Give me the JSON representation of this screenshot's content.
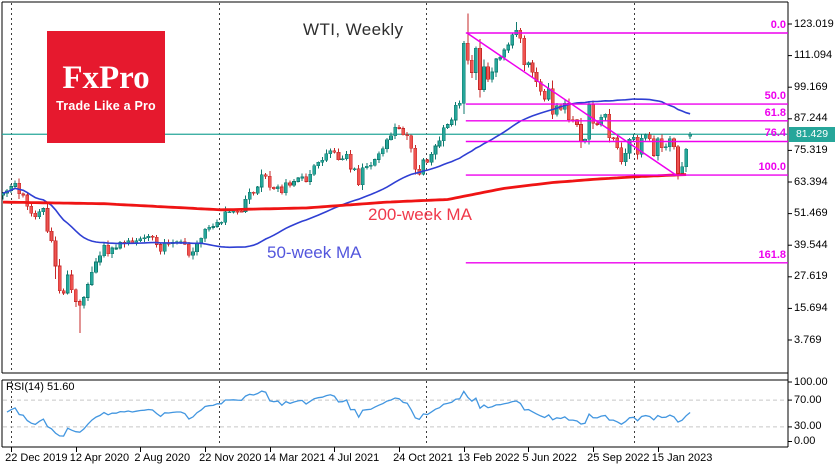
{
  "header": {
    "title": "WTI, Weekly"
  },
  "logo": {
    "name": "FxPro",
    "tagline": "Trade Like a Pro",
    "brand_red": "#e6192e"
  },
  "annotations": {
    "ma200_label": "200-week MA",
    "ma50_label": "50-week MA"
  },
  "rsi": {
    "label": "RSI(14) 51.60",
    "current": 51.6
  },
  "colors": {
    "up_candle": "#26a69a",
    "up_candle_border": "#0f7a6f",
    "down_candle": "#ef5350",
    "down_candle_border": "#c62828",
    "ma50": "#2f3fd3",
    "ma200": "#ef1414",
    "fib": "#ee00ee",
    "current_price_line": "#26a69a",
    "rsi_line": "#4296e0",
    "rsi_grid": "#c8c8c8",
    "axis": "#000000",
    "year_grid": "#3c3c3c"
  },
  "chart_data": {
    "type": "candlestick",
    "symbol": "WTI",
    "timeframe": "Weekly",
    "current_price": 81.429,
    "current_price_label": "81.429",
    "price_axis_ticks": [
      "123.019",
      "111.094",
      "99.169",
      "87.244",
      "75.319",
      "63.394",
      "51.469",
      "39.544",
      "27.619",
      "15.694",
      "3.769"
    ],
    "rsi_axis_ticks": [
      {
        "label": "100.00",
        "value": 100
      },
      {
        "label": "70.00",
        "value": 70
      },
      {
        "label": "30.00",
        "value": 30
      },
      {
        "label": "0.00",
        "value": 0
      }
    ],
    "rsi_guide_levels": [
      70,
      30
    ],
    "date_ticks": [
      {
        "label": "22 Dec 2019",
        "week": 2
      },
      {
        "label": "12 Apr 2020",
        "week": 18
      },
      {
        "label": "2 Aug 2020",
        "week": 34
      },
      {
        "label": "22 Nov 2020",
        "week": 50
      },
      {
        "label": "14 Mar 2021",
        "week": 66
      },
      {
        "label": "4 Jul 2021",
        "week": 82
      },
      {
        "label": "24 Oct 2021",
        "week": 98
      },
      {
        "label": "13 Feb 2022",
        "week": 114
      },
      {
        "label": "5 Jun 2022",
        "week": 130
      },
      {
        "label": "25 Sep 2022",
        "week": 146
      },
      {
        "label": "15 Jan 2023",
        "week": 162
      }
    ],
    "year_gridline_weeks": [
      2,
      53.4,
      104.6,
      156.1
    ],
    "closes": [
      59.2,
      60.1,
      61.7,
      63.0,
      59.0,
      58.5,
      54.2,
      51.6,
      50.3,
      52.1,
      53.4,
      44.8,
      41.3,
      31.7,
      22.4,
      21.5,
      28.3,
      22.8,
      18.3,
      16.9,
      19.8,
      24.7,
      29.4,
      33.2,
      35.5,
      39.6,
      36.3,
      38.5,
      38.5,
      40.6,
      40.2,
      41.3,
      40.3,
      41.2,
      42.0,
      42.3,
      43.0,
      42.6,
      39.8,
      37.3,
      40.3,
      40.1,
      40.6,
      40.9,
      40.9,
      39.9,
      35.8,
      37.1,
      40.1,
      42.2,
      45.5,
      46.3,
      46.6,
      48.2,
      48.2,
      52.2,
      52.2,
      52.4,
      52.3,
      52.2,
      56.9,
      59.5,
      59.2,
      61.5,
      66.1,
      65.6,
      61.4,
      60.9,
      61.5,
      59.3,
      63.1,
      62.1,
      63.6,
      64.9,
      65.4,
      63.6,
      66.3,
      69.6,
      70.9,
      71.6,
      74.0,
      75.2,
      74.6,
      71.8,
      72.1,
      73.9,
      68.3,
      68.4,
      62.3,
      68.7,
      69.3,
      69.7,
      71.9,
      74.0,
      75.9,
      79.3,
      80.8,
      84.0,
      83.6,
      81.3,
      80.8,
      76.1,
      68.2,
      66.3,
      71.7,
      70.9,
      73.8,
      77.0,
      78.9,
      83.8,
      85.1,
      86.8,
      92.3,
      93.1,
      115.7,
      109.3,
      104.7,
      113.9,
      98.3,
      106.9,
      102.1,
      104.9,
      109.8,
      110.5,
      113.2,
      115.1,
      118.9,
      120.7,
      117.6,
      107.6,
      108.4,
      104.8,
      101.2,
      97.6,
      94.7,
      98.6,
      89.0,
      92.1,
      90.8,
      93.1,
      86.9,
      86.8,
      85.1,
      78.7,
      79.5,
      92.6,
      85.6,
      85.1,
      87.9,
      88.9,
      80.1,
      80.0,
      76.3,
      71.0,
      74.3,
      79.6,
      80.3,
      73.8,
      79.9,
      81.3,
      79.7,
      73.4,
      79.7,
      76.3,
      76.7,
      79.7,
      76.7,
      66.7,
      69.2,
      75.7,
      81.4
    ],
    "wick_overrides": {
      "0": {
        "open": 58.4
      },
      "13": {
        "low": 26.8
      },
      "19": {
        "low": 6.5
      },
      "97": {
        "high": 85.4
      },
      "114": {
        "high": 116.6
      },
      "115": {
        "high": 127.0
      },
      "127": {
        "high": 123.7
      },
      "145": {
        "high": 93.9
      },
      "167": {
        "low": 64.4
      },
      "170": {
        "open": 80.6,
        "low": 79.6,
        "high": 82.2
      }
    },
    "ma50_window": 50,
    "ma200_points": [
      [
        0,
        55.8
      ],
      [
        25,
        55.2
      ],
      [
        54,
        52.9
      ],
      [
        75,
        53.6
      ],
      [
        95,
        55.8
      ],
      [
        110,
        56.8
      ],
      [
        124,
        61.0
      ],
      [
        136,
        63.2
      ],
      [
        147,
        64.5
      ],
      [
        158,
        65.5
      ],
      [
        169,
        66.2
      ]
    ],
    "fib": {
      "start_week": 114.5,
      "levels": [
        {
          "label": "0.0",
          "price": 119.62
        },
        {
          "label": "50.0",
          "price": 92.82
        },
        {
          "label": "61.8",
          "price": 86.5
        },
        {
          "label": "76.4",
          "price": 78.68
        },
        {
          "label": "100.0",
          "price": 66.03
        },
        {
          "label": "161.8",
          "price": 32.91
        }
      ]
    },
    "trendline": {
      "from_week": 114.8,
      "from_price": 119.62,
      "to_week": 166.5,
      "to_price": 66.03
    }
  }
}
